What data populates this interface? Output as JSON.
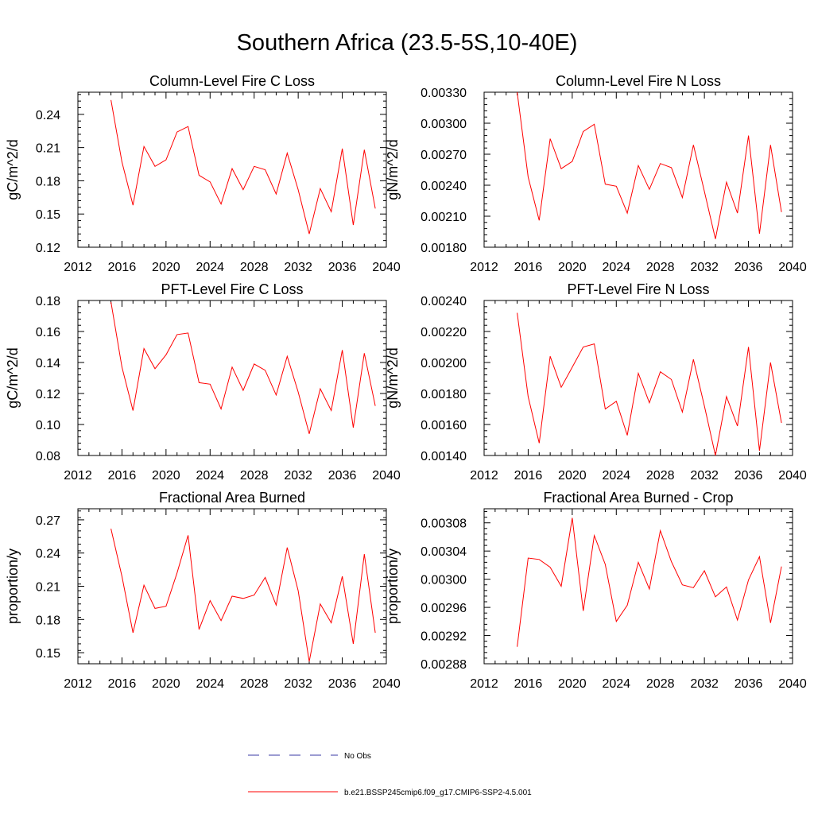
{
  "figure": {
    "title": "Southern Africa (23.5-5S,10-40E)",
    "line_color": "#ff0000",
    "obs_color": "#3a3aa6"
  },
  "legend": {
    "obs_label": "No Obs",
    "model_label": "b.e21.BSSP245cmip6.f09_g17.CMIP6-SSP2-4.5.001"
  },
  "chart_data": [
    {
      "type": "line",
      "title": "Column-Level Fire C Loss",
      "ylabel": "gC/m^2/d",
      "xlim": [
        2012,
        2040
      ],
      "xticks": [
        2012,
        2016,
        2020,
        2024,
        2028,
        2032,
        2036,
        2040
      ],
      "xtick_labels": [
        "2012",
        "2016",
        "2020",
        "2024",
        "2028",
        "2032",
        "2036",
        "2040"
      ],
      "ylim": [
        0.12,
        0.26
      ],
      "yticks": [
        0.12,
        0.15,
        0.18,
        0.21,
        0.24
      ],
      "ytick_labels": [
        "0.12",
        "0.15",
        "0.18",
        "0.21",
        "0.24"
      ],
      "x": [
        2015,
        2016,
        2017,
        2018,
        2019,
        2020,
        2021,
        2022,
        2023,
        2024,
        2025,
        2026,
        2027,
        2028,
        2029,
        2030,
        2031,
        2032,
        2033,
        2034,
        2035,
        2036,
        2037,
        2038,
        2039
      ],
      "values": [
        0.253,
        0.197,
        0.158,
        0.211,
        0.193,
        0.199,
        0.224,
        0.229,
        0.185,
        0.179,
        0.159,
        0.191,
        0.172,
        0.193,
        0.19,
        0.168,
        0.205,
        0.172,
        0.132,
        0.173,
        0.152,
        0.209,
        0.14,
        0.208,
        0.155
      ]
    },
    {
      "type": "line",
      "title": "Column-Level Fire N Loss",
      "ylabel": "gN/m^2/d",
      "xlim": [
        2012,
        2040
      ],
      "xticks": [
        2012,
        2016,
        2020,
        2024,
        2028,
        2032,
        2036,
        2040
      ],
      "xtick_labels": [
        "2012",
        "2016",
        "2020",
        "2024",
        "2028",
        "2032",
        "2036",
        "2040"
      ],
      "ylim": [
        0.0018,
        0.0033
      ],
      "yticks": [
        0.0018,
        0.0021,
        0.0024,
        0.0027,
        0.003,
        0.0033
      ],
      "ytick_labels": [
        "0.00180",
        "0.00210",
        "0.00240",
        "0.00270",
        "0.00300",
        "0.00330"
      ],
      "x": [
        2015,
        2016,
        2017,
        2018,
        2019,
        2020,
        2021,
        2022,
        2023,
        2024,
        2025,
        2026,
        2027,
        2028,
        2029,
        2030,
        2031,
        2032,
        2033,
        2034,
        2035,
        2036,
        2037,
        2038,
        2039
      ],
      "values": [
        0.0033,
        0.00248,
        0.00206,
        0.00285,
        0.00256,
        0.00263,
        0.00292,
        0.00299,
        0.00241,
        0.00239,
        0.00213,
        0.00259,
        0.00236,
        0.00261,
        0.00257,
        0.00228,
        0.00279,
        0.00234,
        0.00188,
        0.00243,
        0.00213,
        0.00288,
        0.00193,
        0.00279,
        0.00214
      ]
    },
    {
      "type": "line",
      "title": "PFT-Level Fire C Loss",
      "ylabel": "gC/m^2/d",
      "xlim": [
        2012,
        2040
      ],
      "xticks": [
        2012,
        2016,
        2020,
        2024,
        2028,
        2032,
        2036,
        2040
      ],
      "xtick_labels": [
        "2012",
        "2016",
        "2020",
        "2024",
        "2028",
        "2032",
        "2036",
        "2040"
      ],
      "ylim": [
        0.08,
        0.18
      ],
      "yticks": [
        0.08,
        0.1,
        0.12,
        0.14,
        0.16,
        0.18
      ],
      "ytick_labels": [
        "0.08",
        "0.10",
        "0.12",
        "0.14",
        "0.16",
        "0.18"
      ],
      "x": [
        2015,
        2016,
        2017,
        2018,
        2019,
        2020,
        2021,
        2022,
        2023,
        2024,
        2025,
        2026,
        2027,
        2028,
        2029,
        2030,
        2031,
        2032,
        2033,
        2034,
        2035,
        2036,
        2037,
        2038,
        2039
      ],
      "values": [
        0.179,
        0.137,
        0.109,
        0.149,
        0.136,
        0.145,
        0.158,
        0.159,
        0.127,
        0.126,
        0.11,
        0.137,
        0.122,
        0.139,
        0.135,
        0.119,
        0.144,
        0.121,
        0.094,
        0.123,
        0.109,
        0.148,
        0.098,
        0.146,
        0.112
      ]
    },
    {
      "type": "line",
      "title": "PFT-Level Fire N Loss",
      "ylabel": "gN/m^2/d",
      "xlim": [
        2012,
        2040
      ],
      "xticks": [
        2012,
        2016,
        2020,
        2024,
        2028,
        2032,
        2036,
        2040
      ],
      "xtick_labels": [
        "2012",
        "2016",
        "2020",
        "2024",
        "2028",
        "2032",
        "2036",
        "2040"
      ],
      "ylim": [
        0.0014,
        0.0024
      ],
      "yticks": [
        0.0014,
        0.0016,
        0.0018,
        0.002,
        0.0022,
        0.0024
      ],
      "ytick_labels": [
        "0.00140",
        "0.00160",
        "0.00180",
        "0.00200",
        "0.00220",
        "0.00240"
      ],
      "x": [
        2015,
        2016,
        2017,
        2018,
        2019,
        2020,
        2021,
        2022,
        2023,
        2024,
        2025,
        2026,
        2027,
        2028,
        2029,
        2030,
        2031,
        2032,
        2033,
        2034,
        2035,
        2036,
        2037,
        2038,
        2039
      ],
      "values": [
        0.00232,
        0.00178,
        0.00148,
        0.00204,
        0.00184,
        0.00197,
        0.0021,
        0.00212,
        0.0017,
        0.00175,
        0.00153,
        0.00193,
        0.00174,
        0.00194,
        0.00189,
        0.00168,
        0.00202,
        0.00172,
        0.0014,
        0.00178,
        0.00159,
        0.0021,
        0.00143,
        0.002,
        0.00161
      ]
    },
    {
      "type": "line",
      "title": "Fractional Area Burned",
      "ylabel": "proportion/y",
      "xlim": [
        2012,
        2040
      ],
      "xticks": [
        2012,
        2016,
        2020,
        2024,
        2028,
        2032,
        2036,
        2040
      ],
      "xtick_labels": [
        "2012",
        "2016",
        "2020",
        "2024",
        "2028",
        "2032",
        "2036",
        "2040"
      ],
      "ylim": [
        0.14,
        0.28
      ],
      "yticks": [
        0.15,
        0.18,
        0.21,
        0.24,
        0.27
      ],
      "ytick_labels": [
        "0.15",
        "0.18",
        "0.21",
        "0.24",
        "0.27"
      ],
      "x": [
        2015,
        2016,
        2017,
        2018,
        2019,
        2020,
        2021,
        2022,
        2023,
        2024,
        2025,
        2026,
        2027,
        2028,
        2029,
        2030,
        2031,
        2032,
        2033,
        2034,
        2035,
        2036,
        2037,
        2038,
        2039
      ],
      "values": [
        0.262,
        0.219,
        0.168,
        0.211,
        0.19,
        0.192,
        0.222,
        0.256,
        0.171,
        0.197,
        0.179,
        0.201,
        0.199,
        0.202,
        0.218,
        0.193,
        0.245,
        0.206,
        0.142,
        0.194,
        0.177,
        0.219,
        0.158,
        0.239,
        0.168
      ]
    },
    {
      "type": "line",
      "title": "Fractional Area Burned - Crop",
      "ylabel": "proportion/y",
      "xlim": [
        2012,
        2040
      ],
      "xticks": [
        2012,
        2016,
        2020,
        2024,
        2028,
        2032,
        2036,
        2040
      ],
      "xtick_labels": [
        "2012",
        "2016",
        "2020",
        "2024",
        "2028",
        "2032",
        "2036",
        "2040"
      ],
      "ylim": [
        0.00288,
        0.0031
      ],
      "yticks": [
        0.00288,
        0.00292,
        0.00296,
        0.003,
        0.00304,
        0.00308
      ],
      "ytick_labels": [
        "0.00288",
        "0.00292",
        "0.00296",
        "0.00300",
        "0.00304",
        "0.00308"
      ],
      "x": [
        2015,
        2016,
        2017,
        2018,
        2019,
        2020,
        2021,
        2022,
        2023,
        2024,
        2025,
        2026,
        2027,
        2028,
        2029,
        2030,
        2031,
        2032,
        2033,
        2034,
        2035,
        2036,
        2037,
        2038,
        2039
      ],
      "values": [
        0.002904,
        0.00303,
        0.003028,
        0.003017,
        0.00299,
        0.003087,
        0.002955,
        0.003062,
        0.003021,
        0.00294,
        0.002963,
        0.003024,
        0.002986,
        0.003069,
        0.003025,
        0.002992,
        0.002988,
        0.003012,
        0.002975,
        0.002989,
        0.002942,
        0.002999,
        0.003032,
        0.002938,
        0.003018
      ]
    }
  ]
}
